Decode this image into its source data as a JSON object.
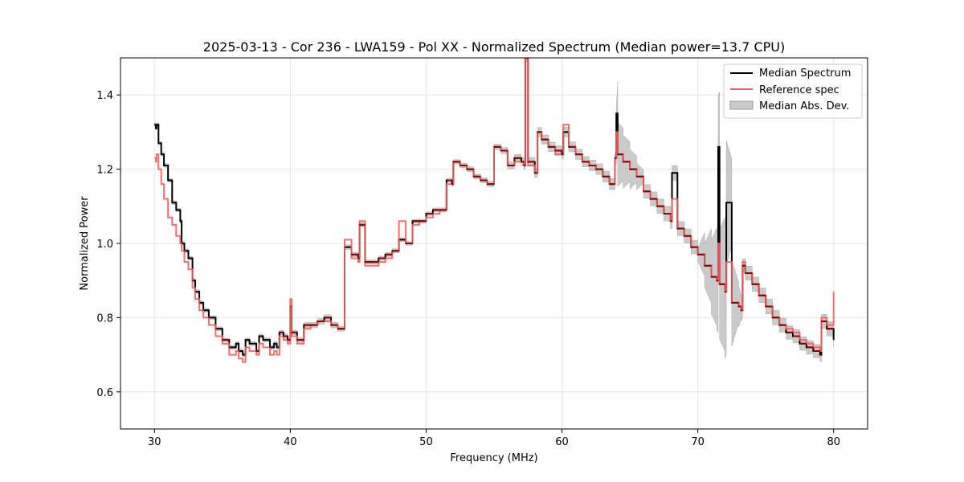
{
  "chart_data": {
    "type": "line",
    "title": "2025-03-13 - Cor 236 - LWA159 - Pol XX - Normalized Spectrum (Median power=13.7 CPU)",
    "xlabel": "Frequency (MHz)",
    "ylabel": "Normalized Power",
    "xlim": [
      27.5,
      82.5
    ],
    "ylim": [
      0.5,
      1.5
    ],
    "xticks": [
      30,
      40,
      50,
      60,
      70,
      80
    ],
    "yticks": [
      0.6,
      0.8,
      1.0,
      1.2,
      1.4
    ],
    "xtick_labels": [
      "30",
      "40",
      "50",
      "60",
      "70",
      "80"
    ],
    "ytick_labels": [
      "0.6",
      "0.8",
      "1.0",
      "1.2",
      "1.4"
    ],
    "grid": true,
    "legend_position": "top-right",
    "colors": {
      "median": "#000000",
      "reference": "#f0605f",
      "mad_fill": "#bdbdbd",
      "overlap": "#8b0000"
    },
    "series": [
      {
        "name": "Median Spectrum",
        "x": [
          30.0,
          30.1,
          30.15,
          30.3,
          30.5,
          30.7,
          31.0,
          31.3,
          31.6,
          31.9,
          32.0,
          32.2,
          32.5,
          32.8,
          33.0,
          33.3,
          33.6,
          34.0,
          34.5,
          35.0,
          35.5,
          36.0,
          36.2,
          36.5,
          36.7,
          37.0,
          37.5,
          37.7,
          38.0,
          38.5,
          38.8,
          39.0,
          39.2,
          39.5,
          39.8,
          40.0,
          40.1,
          40.5,
          41.0,
          41.5,
          42.0,
          42.5,
          43.0,
          43.5,
          43.9,
          44.0,
          44.5,
          45.0,
          45.1,
          45.5,
          46.0,
          46.5,
          47.0,
          47.5,
          48.0,
          48.5,
          49.0,
          49.5,
          50.0,
          50.5,
          51.0,
          51.5,
          51.9,
          52.0,
          52.5,
          53.0,
          53.5,
          54.0,
          54.5,
          54.9,
          55.0,
          55.5,
          56.0,
          56.5,
          57.0,
          57.2,
          57.3,
          57.5,
          58.0,
          58.2,
          58.5,
          59.0,
          59.5,
          60.0,
          60.1,
          60.5,
          61.0,
          61.5,
          62.0,
          62.5,
          63.0,
          63.5,
          63.9,
          64.0,
          64.1,
          64.5,
          65.0,
          65.5,
          66.0,
          66.5,
          67.0,
          67.5,
          68.0,
          68.1,
          68.5,
          69.0,
          69.5,
          70.0,
          70.5,
          71.0,
          71.4,
          71.5,
          71.6,
          72.0,
          72.1,
          72.5,
          73.0,
          73.2,
          73.3,
          73.5,
          74.0,
          74.5,
          75.0,
          75.5,
          76.0,
          76.5,
          77.0,
          77.5,
          78.0,
          78.5,
          79.0,
          79.1,
          79.5,
          80.0
        ],
        "values": [
          1.32,
          1.31,
          1.32,
          1.27,
          1.24,
          1.21,
          1.17,
          1.11,
          1.09,
          1.06,
          1.0,
          0.98,
          0.96,
          0.9,
          0.87,
          0.84,
          0.82,
          0.8,
          0.77,
          0.74,
          0.72,
          0.73,
          0.71,
          0.7,
          0.74,
          0.73,
          0.71,
          0.75,
          0.74,
          0.72,
          0.73,
          0.72,
          0.76,
          0.75,
          0.74,
          0.83,
          0.76,
          0.74,
          0.78,
          0.78,
          0.79,
          0.8,
          0.78,
          0.77,
          0.77,
          0.99,
          0.97,
          0.96,
          1.05,
          0.95,
          0.95,
          0.96,
          0.97,
          0.98,
          1.01,
          1.0,
          1.06,
          1.06,
          1.08,
          1.09,
          1.09,
          1.17,
          1.16,
          1.22,
          1.21,
          1.2,
          1.18,
          1.17,
          1.16,
          1.16,
          1.26,
          1.25,
          1.21,
          1.23,
          1.22,
          1.21,
          1.5,
          1.22,
          1.19,
          1.3,
          1.28,
          1.26,
          1.25,
          1.24,
          1.3,
          1.26,
          1.24,
          1.22,
          1.21,
          1.2,
          1.18,
          1.16,
          1.23,
          1.35,
          1.24,
          1.22,
          1.2,
          1.18,
          1.14,
          1.12,
          1.1,
          1.08,
          1.06,
          1.19,
          1.04,
          1.02,
          0.99,
          0.97,
          0.94,
          0.91,
          0.9,
          1.26,
          0.89,
          0.87,
          1.11,
          0.84,
          0.83,
          0.82,
          0.94,
          0.92,
          0.89,
          0.86,
          0.83,
          0.8,
          0.78,
          0.76,
          0.75,
          0.73,
          0.72,
          0.71,
          0.7,
          0.79,
          0.77,
          0.74
        ]
      },
      {
        "name": "Reference spec",
        "x": [
          30.0,
          30.1,
          30.15,
          30.3,
          30.5,
          30.7,
          31.0,
          31.3,
          31.6,
          31.9,
          32.0,
          32.2,
          32.5,
          32.8,
          33.0,
          33.3,
          33.6,
          34.0,
          34.5,
          35.0,
          35.5,
          36.0,
          36.2,
          36.5,
          36.7,
          37.0,
          37.5,
          37.7,
          38.0,
          38.5,
          38.8,
          39.0,
          39.2,
          39.5,
          39.8,
          40.0,
          40.1,
          40.5,
          41.0,
          41.5,
          42.0,
          42.5,
          43.0,
          43.5,
          43.9,
          44.0,
          44.5,
          45.0,
          45.1,
          45.5,
          46.0,
          46.5,
          47.0,
          47.5,
          48.0,
          48.5,
          49.0,
          49.5,
          50.0,
          50.5,
          51.0,
          51.5,
          51.9,
          52.0,
          52.5,
          53.0,
          53.5,
          54.0,
          54.5,
          54.9,
          55.0,
          55.5,
          56.0,
          56.5,
          57.0,
          57.2,
          57.3,
          57.5,
          58.0,
          58.2,
          58.5,
          59.0,
          59.5,
          60.0,
          60.1,
          60.5,
          61.0,
          61.5,
          62.0,
          62.5,
          63.0,
          63.5,
          63.9,
          64.0,
          64.1,
          64.5,
          65.0,
          65.5,
          66.0,
          66.5,
          67.0,
          67.5,
          68.0,
          68.1,
          68.5,
          69.0,
          69.5,
          70.0,
          70.5,
          71.0,
          71.4,
          71.5,
          71.6,
          72.0,
          72.1,
          72.5,
          73.0,
          73.2,
          73.3,
          73.5,
          74.0,
          74.5,
          75.0,
          75.5,
          76.0,
          76.5,
          77.0,
          77.5,
          78.0,
          78.5,
          79.0,
          79.1,
          79.5,
          80.0
        ],
        "values": [
          1.23,
          1.22,
          1.24,
          1.2,
          1.16,
          1.12,
          1.07,
          1.05,
          1.02,
          1.0,
          0.98,
          0.95,
          0.93,
          0.88,
          0.85,
          0.82,
          0.8,
          0.78,
          0.75,
          0.73,
          0.7,
          0.71,
          0.69,
          0.68,
          0.72,
          0.71,
          0.7,
          0.73,
          0.72,
          0.7,
          0.71,
          0.7,
          0.75,
          0.74,
          0.73,
          0.85,
          0.75,
          0.73,
          0.77,
          0.78,
          0.79,
          0.79,
          0.78,
          0.77,
          0.77,
          1.01,
          0.96,
          0.95,
          1.06,
          0.94,
          0.94,
          0.95,
          0.96,
          0.98,
          1.06,
          1.0,
          1.05,
          1.06,
          1.07,
          1.08,
          1.09,
          1.16,
          1.16,
          1.22,
          1.21,
          1.2,
          1.18,
          1.17,
          1.16,
          1.16,
          1.26,
          1.25,
          1.21,
          1.22,
          1.22,
          1.21,
          1.5,
          1.21,
          1.19,
          1.3,
          1.28,
          1.26,
          1.24,
          1.24,
          1.32,
          1.26,
          1.24,
          1.22,
          1.21,
          1.2,
          1.18,
          1.16,
          1.23,
          1.3,
          1.24,
          1.22,
          1.2,
          1.18,
          1.14,
          1.12,
          1.1,
          1.08,
          1.06,
          1.12,
          1.04,
          1.02,
          0.99,
          0.97,
          0.94,
          0.91,
          0.9,
          1.0,
          0.89,
          0.87,
          0.95,
          0.84,
          0.83,
          0.82,
          0.95,
          0.92,
          0.89,
          0.86,
          0.83,
          0.8,
          0.78,
          0.77,
          0.76,
          0.74,
          0.73,
          0.72,
          0.71,
          0.8,
          0.78,
          0.87
        ]
      }
    ],
    "mad_band": {
      "name": "Median Abs. Dev.",
      "x": [
        30.0,
        32.0,
        35.0,
        40.0,
        43.0,
        44.0,
        50.0,
        55.0,
        58.0,
        60.0,
        62.0,
        64.0,
        64.0,
        66.0,
        68.0,
        70.0,
        71.5,
        72.0,
        73.3,
        75.0,
        77.0,
        79.0,
        80.0
      ],
      "half_width": [
        0.005,
        0.005,
        0.005,
        0.006,
        0.008,
        0.006,
        0.005,
        0.007,
        0.012,
        0.013,
        0.014,
        0.015,
        0.09,
        0.018,
        0.02,
        0.018,
        0.14,
        0.18,
        0.018,
        0.02,
        0.018,
        0.018,
        0.02
      ]
    },
    "legend": [
      "Median Spectrum",
      "Reference spec",
      "Median Abs. Dev."
    ]
  }
}
